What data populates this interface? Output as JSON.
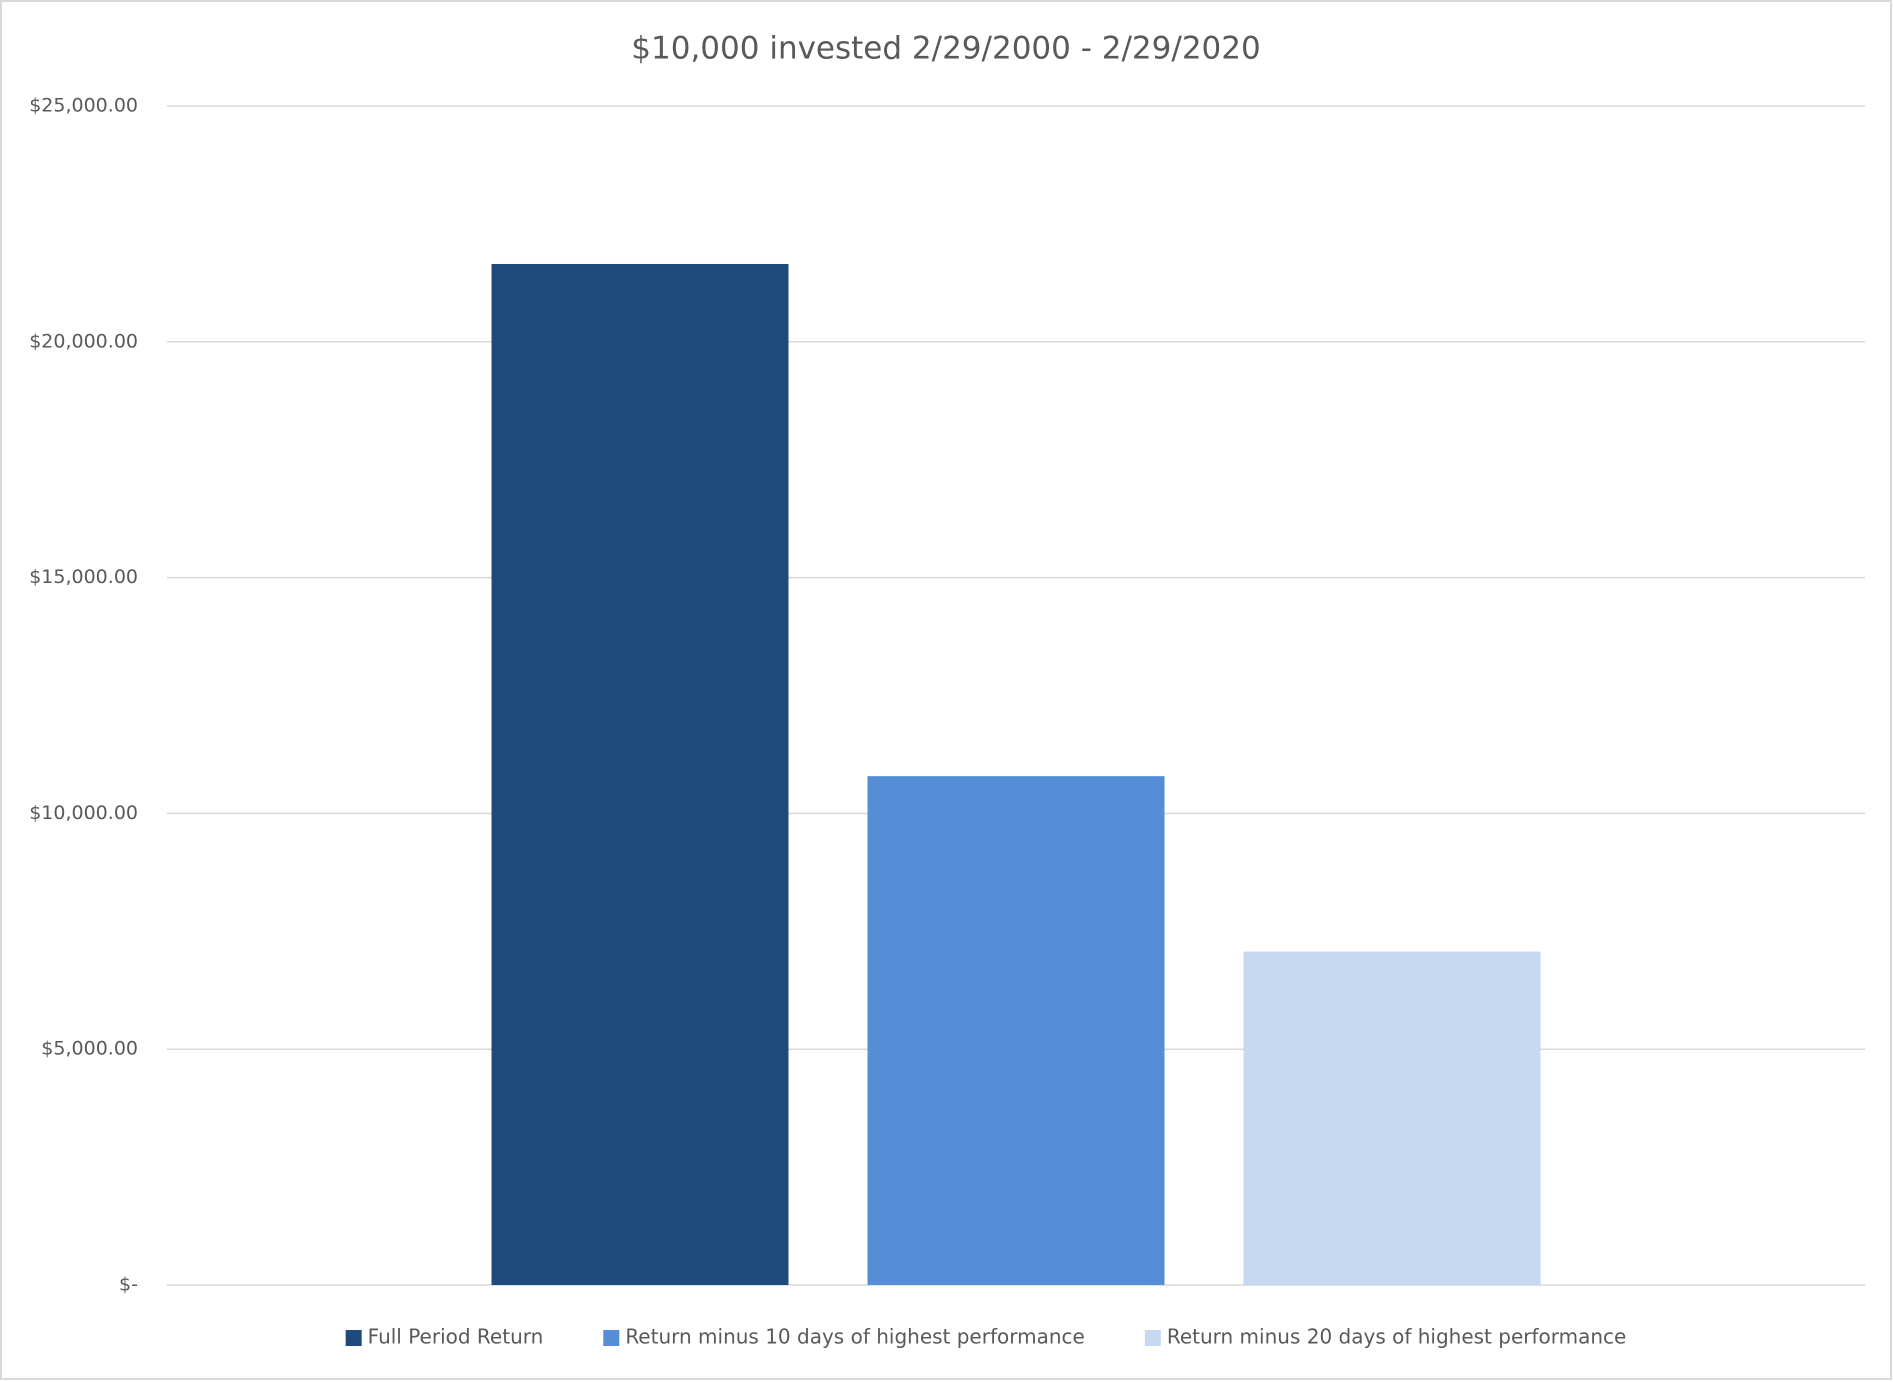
{
  "chart_data": {
    "type": "bar",
    "title": "$10,000 invested 2/29/2000 - 2/29/2020",
    "categories": [
      null
    ],
    "series": [
      {
        "name": "Full Period Return",
        "color": "#1f4b7c",
        "values": [
          21650
        ]
      },
      {
        "name": "Return minus 10 days of highest performance",
        "color": "#558ed6",
        "values": [
          10790
        ]
      },
      {
        "name": "Return minus 20 days of highest performance",
        "color": "#c6d9f0",
        "values": [
          7070
        ]
      }
    ],
    "ylim": [
      0,
      25000
    ],
    "yticks": [
      {
        "value": 0,
        "label": "$-"
      },
      {
        "value": 5000,
        "label": "$5,000.00"
      },
      {
        "value": 10000,
        "label": "$10,000.00"
      },
      {
        "value": 15000,
        "label": "$15,000.00"
      },
      {
        "value": 20000,
        "label": "$20,000.00"
      },
      {
        "value": 25000,
        "label": "$25,000.00"
      }
    ],
    "grid": true,
    "legend": "bottom"
  }
}
